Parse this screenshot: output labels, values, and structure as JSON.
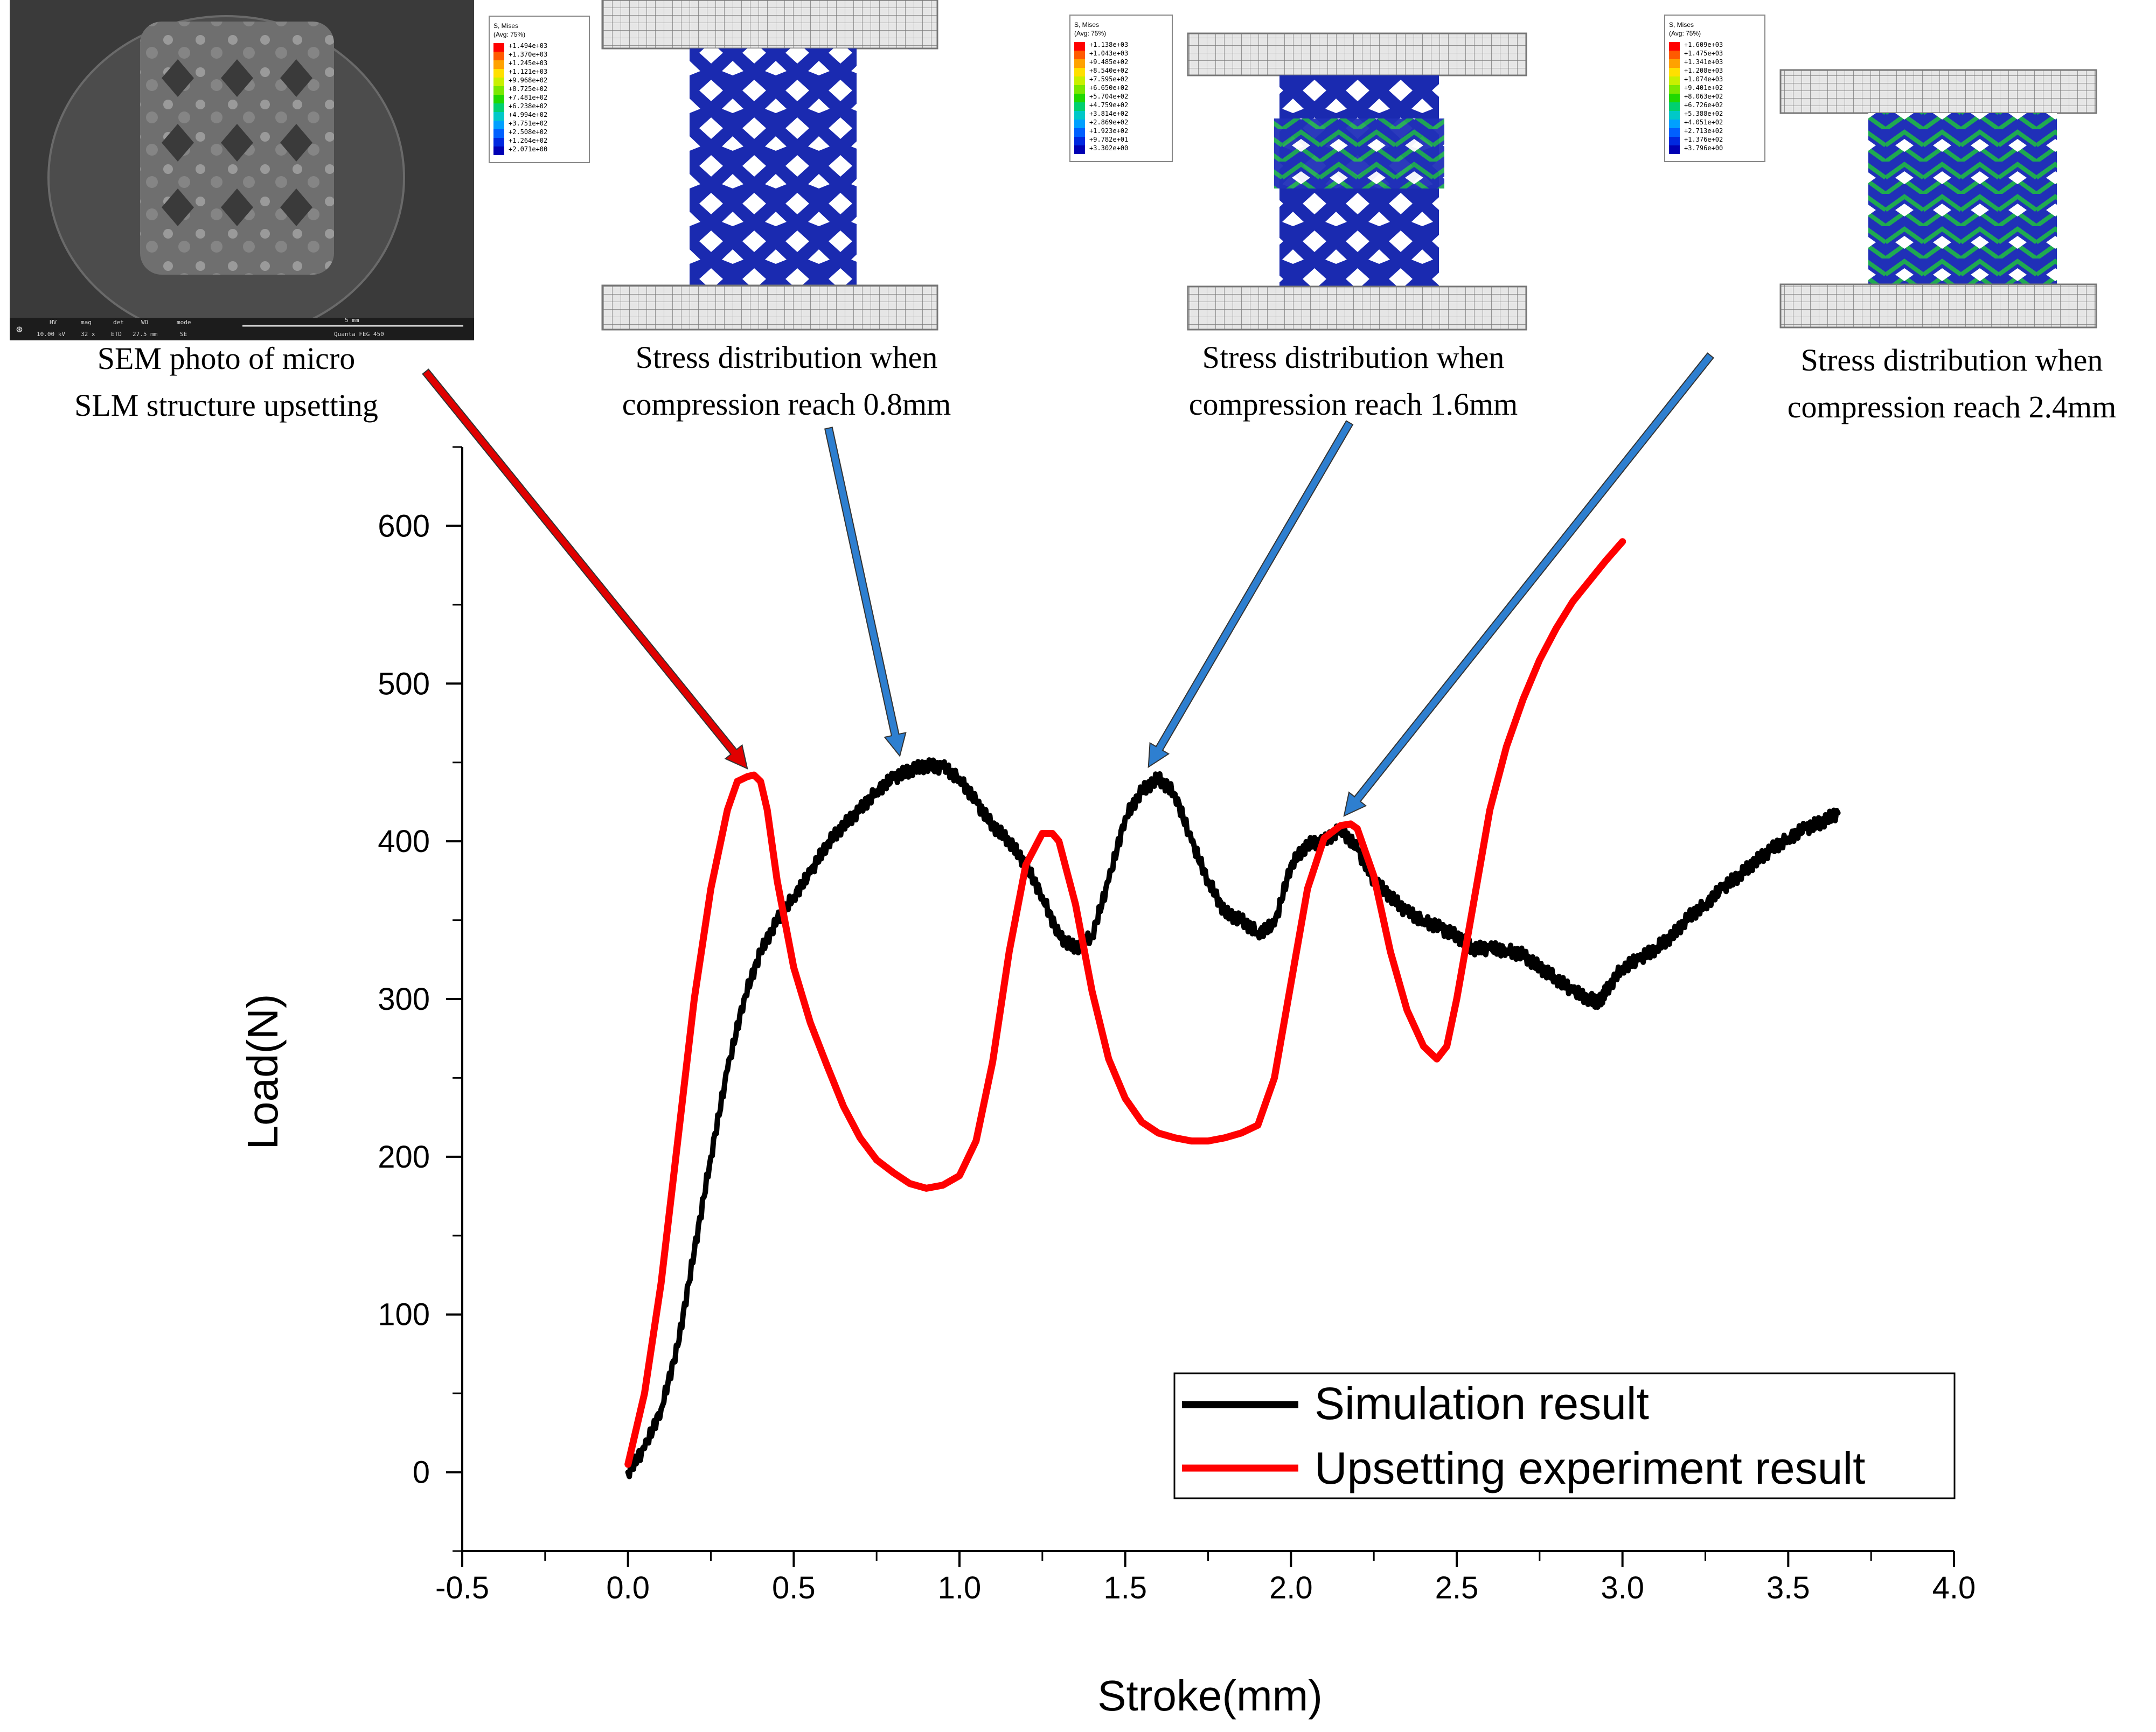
{
  "chart_data": {
    "type": "line",
    "xlabel": "Stroke(mm)",
    "ylabel": "Load(N)",
    "xlim": [
      -0.5,
      4.0
    ],
    "ylim": [
      -50,
      650
    ],
    "xticks": [
      -0.5,
      0.0,
      0.5,
      1.0,
      1.5,
      2.0,
      2.5,
      3.0,
      3.5,
      4.0
    ],
    "xtick_labels": [
      "-0.5",
      "0.0",
      "0.5",
      "1.0",
      "1.5",
      "2.0",
      "2.5",
      "3.0",
      "3.5",
      "4.0"
    ],
    "yticks": [
      0,
      100,
      200,
      300,
      400,
      500,
      600
    ],
    "ytick_labels": [
      "0",
      "100",
      "200",
      "300",
      "400",
      "500",
      "600"
    ],
    "grid": false,
    "legend_position": "bottom-right",
    "series": [
      {
        "name": "Simulation result",
        "color": "#000000",
        "x": [
          0.0,
          0.05,
          0.1,
          0.15,
          0.2,
          0.25,
          0.3,
          0.35,
          0.4,
          0.45,
          0.5,
          0.55,
          0.6,
          0.65,
          0.7,
          0.75,
          0.8,
          0.85,
          0.9,
          0.95,
          1.0,
          1.05,
          1.1,
          1.15,
          1.2,
          1.25,
          1.3,
          1.35,
          1.4,
          1.45,
          1.5,
          1.55,
          1.6,
          1.65,
          1.7,
          1.75,
          1.8,
          1.85,
          1.9,
          1.95,
          2.0,
          2.05,
          2.1,
          2.15,
          2.2,
          2.25,
          2.3,
          2.35,
          2.4,
          2.45,
          2.5,
          2.55,
          2.6,
          2.65,
          2.7,
          2.75,
          2.8,
          2.85,
          2.9,
          2.93,
          2.95,
          3.0,
          3.05,
          3.1,
          3.15,
          3.2,
          3.25,
          3.3,
          3.35,
          3.4,
          3.45,
          3.5,
          3.55,
          3.6,
          3.65
        ],
        "y": [
          0,
          15,
          40,
          80,
          140,
          200,
          255,
          300,
          330,
          350,
          365,
          380,
          398,
          410,
          420,
          432,
          440,
          445,
          448,
          447,
          440,
          425,
          410,
          400,
          385,
          365,
          340,
          332,
          340,
          375,
          415,
          432,
          440,
          430,
          400,
          375,
          355,
          350,
          342,
          347,
          385,
          398,
          400,
          408,
          395,
          375,
          365,
          355,
          350,
          345,
          340,
          332,
          332,
          331,
          328,
          320,
          313,
          305,
          300,
          298,
          305,
          320,
          325,
          332,
          340,
          352,
          360,
          370,
          378,
          387,
          395,
          402,
          408,
          412,
          418
        ]
      },
      {
        "name": "Upsetting experiment result",
        "color": "#ff0000",
        "x": [
          0.0,
          0.05,
          0.1,
          0.15,
          0.2,
          0.25,
          0.3,
          0.33,
          0.36,
          0.38,
          0.4,
          0.42,
          0.45,
          0.5,
          0.55,
          0.6,
          0.65,
          0.7,
          0.75,
          0.8,
          0.85,
          0.9,
          0.95,
          1.0,
          1.05,
          1.1,
          1.15,
          1.2,
          1.25,
          1.28,
          1.3,
          1.35,
          1.4,
          1.45,
          1.5,
          1.55,
          1.6,
          1.65,
          1.7,
          1.75,
          1.8,
          1.85,
          1.9,
          1.95,
          2.0,
          2.05,
          2.1,
          2.15,
          2.18,
          2.2,
          2.25,
          2.3,
          2.35,
          2.4,
          2.44,
          2.47,
          2.5,
          2.55,
          2.6,
          2.65,
          2.7,
          2.75,
          2.8,
          2.85,
          2.9,
          2.95,
          3.0
        ],
        "y": [
          5,
          50,
          120,
          210,
          300,
          370,
          420,
          438,
          441,
          442,
          438,
          420,
          375,
          320,
          285,
          258,
          232,
          212,
          198,
          190,
          183,
          180,
          182,
          188,
          210,
          260,
          330,
          385,
          405,
          405,
          400,
          360,
          305,
          262,
          237,
          222,
          215,
          212,
          210,
          210,
          212,
          215,
          220,
          250,
          310,
          370,
          402,
          410,
          411,
          408,
          378,
          330,
          293,
          270,
          262,
          270,
          300,
          360,
          420,
          460,
          490,
          515,
          535,
          552,
          565,
          578,
          590
        ]
      }
    ],
    "annotations": [
      {
        "text_line1": "SEM photo of micro",
        "text_line2": "SLM structure upsetting",
        "arrow_color": "#e00000",
        "points_to": [
          0.36,
          442
        ]
      },
      {
        "text_line1": "Stress distribution when",
        "text_line2": "compression reach 0.8mm",
        "arrow_color": "#2e7fd0",
        "points_to": [
          0.82,
          450
        ]
      },
      {
        "text_line1": "Stress distribution when",
        "text_line2": "compression reach 1.6mm",
        "arrow_color": "#2e7fd0",
        "points_to": [
          1.57,
          443
        ]
      },
      {
        "text_line1": "Stress distribution when",
        "text_line2": "compression reach 2.4mm",
        "arrow_color": "#2e7fd0",
        "points_to": [
          2.16,
          412
        ]
      }
    ]
  },
  "sem_panel": {
    "info_headers": [
      "HV",
      "mag",
      "det",
      "WD",
      "mode"
    ],
    "info_values": [
      "10.00 kV",
      "32 x",
      "ETD",
      "27.5 mm",
      "SE"
    ],
    "scale_label": "5 mm",
    "instrument": "Quanta FEG 450"
  },
  "stress_legends": [
    {
      "title": "S, Mises",
      "subtitle": "(Avg: 75%)",
      "values": [
        "+1.494e+03",
        "+1.370e+03",
        "+1.245e+03",
        "+1.121e+03",
        "+9.968e+02",
        "+8.725e+02",
        "+7.481e+02",
        "+6.238e+02",
        "+4.994e+02",
        "+3.751e+02",
        "+2.508e+02",
        "+1.264e+02",
        "+2.071e+00"
      ]
    },
    {
      "title": "S, Mises",
      "subtitle": "(Avg: 75%)",
      "values": [
        "+1.138e+03",
        "+1.043e+03",
        "+9.485e+02",
        "+8.540e+02",
        "+7.595e+02",
        "+6.650e+02",
        "+5.704e+02",
        "+4.759e+02",
        "+3.814e+02",
        "+2.869e+02",
        "+1.923e+02",
        "+9.782e+01",
        "+3.302e+00"
      ]
    },
    {
      "title": "S, Mises",
      "subtitle": "(Avg: 75%)",
      "values": [
        "+1.609e+03",
        "+1.475e+03",
        "+1.341e+03",
        "+1.208e+03",
        "+1.074e+03",
        "+9.401e+02",
        "+8.063e+02",
        "+6.726e+02",
        "+5.388e+02",
        "+4.051e+02",
        "+2.713e+02",
        "+1.376e+02",
        "+3.796e+00"
      ]
    }
  ],
  "colors": {
    "legend_scale": [
      "#ff0000",
      "#ff5a00",
      "#ffa200",
      "#ffe000",
      "#c8f000",
      "#7ae800",
      "#20d800",
      "#00d070",
      "#00c8c8",
      "#00a0ff",
      "#0060ff",
      "#0028e0",
      "#0000b4"
    ],
    "lattice_low": "#1a2ab0",
    "lattice_mid": "#1e9e4a",
    "platen_fill": "#e6e6e6",
    "platen_line": "#777777"
  }
}
